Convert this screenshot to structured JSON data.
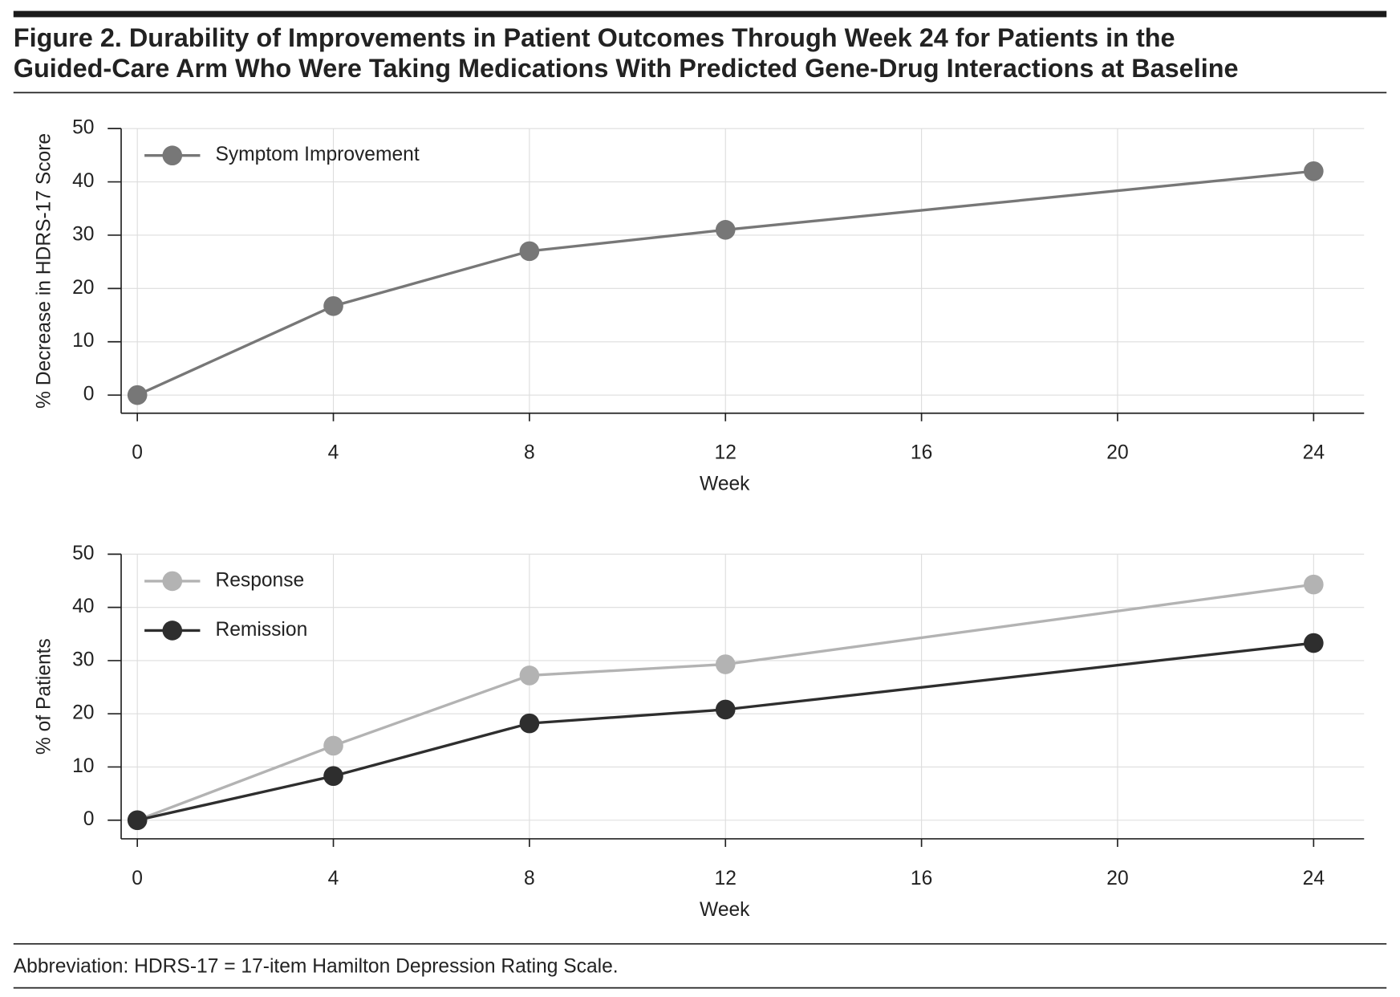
{
  "figure": {
    "title": [
      "Figure 2. Durability of Improvements in Patient Outcomes Through Week 24 for Patients in the",
      "Guided-Care Arm Who Were Taking Medications With Predicted Gene-Drug Interactions at Baseline"
    ],
    "footnote": "Abbreviation: HDRS-17 = 17-item Hamilton Depression Rating Scale."
  },
  "chart_data": [
    {
      "type": "line",
      "x_label": "Week",
      "y_label": "% Decrease in HDRS-17 Score",
      "x": [
        0,
        4,
        8,
        12,
        24
      ],
      "xlim": [
        -0.33,
        25.03
      ],
      "xticks": [
        0,
        4,
        8,
        12,
        16,
        20,
        24
      ],
      "ylim": [
        -3.4,
        50
      ],
      "yticks": [
        0,
        10,
        20,
        30,
        40,
        50
      ],
      "grid": true,
      "legend": "upper left",
      "series": [
        {
          "name": "Symptom Improvement",
          "color": "#777777",
          "values": [
            0,
            16.7,
            27,
            31,
            42
          ]
        }
      ]
    },
    {
      "type": "line",
      "x_label": "Week",
      "y_label": "% of Patients",
      "x": [
        0,
        4,
        8,
        12,
        24
      ],
      "xlim": [
        -0.33,
        25.03
      ],
      "xticks": [
        0,
        4,
        8,
        12,
        16,
        20,
        24
      ],
      "ylim": [
        -3.5,
        50
      ],
      "yticks": [
        0,
        10,
        20,
        30,
        40,
        50
      ],
      "grid": true,
      "legend": "upper left",
      "series": [
        {
          "name": "Response",
          "color": "#b3b3b3",
          "values": [
            0,
            14,
            27.2,
            29.3,
            44.3
          ]
        },
        {
          "name": "Remission",
          "color": "#2e2e2e",
          "values": [
            0,
            8.3,
            18.2,
            20.8,
            33.3
          ]
        }
      ]
    }
  ]
}
